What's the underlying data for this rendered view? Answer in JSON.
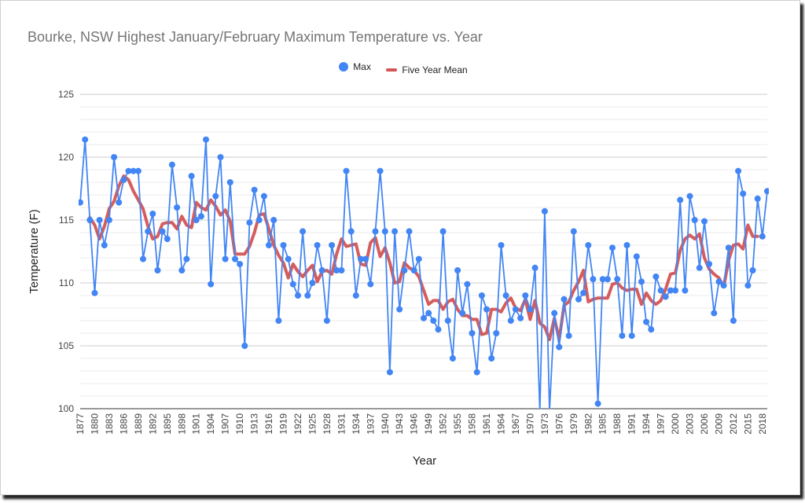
{
  "chart_data": {
    "type": "line",
    "title": "Bourke, NSW Highest January/February Maximum Temperature vs. Year",
    "xlabel": "Year",
    "ylabel": "Temperature (F)",
    "ylim": [
      100,
      125
    ],
    "yticks": [
      100,
      105,
      110,
      115,
      120,
      125
    ],
    "xlim": [
      1877,
      2019
    ],
    "xticks": [
      1877,
      1880,
      1883,
      1886,
      1889,
      1892,
      1895,
      1898,
      1901,
      1904,
      1907,
      1910,
      1913,
      1916,
      1919,
      1922,
      1925,
      1928,
      1931,
      1934,
      1937,
      1940,
      1943,
      1946,
      1949,
      1952,
      1955,
      1958,
      1961,
      1964,
      1967,
      1970,
      1973,
      1976,
      1979,
      1982,
      1985,
      1988,
      1991,
      1994,
      1997,
      2000,
      2003,
      2006,
      2009,
      2012,
      2015,
      2018
    ],
    "grid": true,
    "legend_position": "top",
    "series": [
      {
        "name": "Max",
        "color": "#4285f4",
        "style": "line-with-points",
        "x": [
          1877,
          1878,
          1879,
          1880,
          1881,
          1882,
          1883,
          1884,
          1885,
          1886,
          1887,
          1888,
          1889,
          1890,
          1891,
          1892,
          1893,
          1894,
          1895,
          1896,
          1897,
          1898,
          1899,
          1900,
          1901,
          1902,
          1903,
          1904,
          1905,
          1906,
          1907,
          1908,
          1909,
          1910,
          1911,
          1912,
          1913,
          1914,
          1915,
          1916,
          1917,
          1918,
          1919,
          1920,
          1921,
          1922,
          1923,
          1924,
          1925,
          1926,
          1927,
          1928,
          1929,
          1930,
          1931,
          1932,
          1933,
          1934,
          1935,
          1936,
          1937,
          1938,
          1939,
          1940,
          1941,
          1942,
          1943,
          1944,
          1945,
          1946,
          1947,
          1948,
          1949,
          1950,
          1951,
          1952,
          1953,
          1954,
          1955,
          1956,
          1957,
          1958,
          1959,
          1960,
          1961,
          1962,
          1963,
          1964,
          1965,
          1966,
          1967,
          1968,
          1969,
          1970,
          1971,
          1972,
          1973,
          1974,
          1975,
          1976,
          1977,
          1978,
          1979,
          1980,
          1981,
          1982,
          1983,
          1984,
          1985,
          1986,
          1987,
          1988,
          1989,
          1990,
          1991,
          1992,
          1993,
          1994,
          1995,
          1996,
          1997,
          1998,
          1999,
          2000,
          2001,
          2002,
          2003,
          2004,
          2005,
          2006,
          2007,
          2008,
          2009,
          2010,
          2011,
          2012,
          2013,
          2014,
          2015,
          2016,
          2017,
          2018,
          2019
        ],
        "values": [
          116.4,
          121.4,
          115.0,
          109.2,
          115.0,
          113.0,
          115.0,
          120.0,
          116.4,
          118.2,
          118.9,
          118.9,
          118.9,
          111.9,
          114.1,
          115.5,
          111.0,
          114.1,
          113.5,
          119.4,
          116.0,
          111.0,
          111.9,
          118.5,
          115.0,
          115.3,
          121.4,
          109.9,
          116.9,
          120.0,
          111.9,
          118.0,
          111.9,
          111.5,
          105.0,
          114.8,
          117.4,
          115.0,
          116.9,
          113.0,
          115.0,
          107.0,
          113.0,
          111.9,
          109.9,
          109.0,
          114.1,
          109.0,
          110.0,
          113.0,
          111.0,
          107.0,
          113.0,
          111.0,
          111.0,
          118.9,
          114.1,
          109.0,
          111.9,
          111.9,
          109.9,
          114.1,
          118.9,
          114.1,
          102.9,
          114.1,
          107.9,
          111.0,
          114.1,
          111.0,
          111.9,
          107.2,
          107.6,
          107.0,
          106.3,
          114.1,
          107.0,
          104.0,
          111.0,
          107.6,
          109.9,
          106.0,
          102.9,
          109.0,
          107.9,
          104.0,
          106.0,
          113.0,
          109.0,
          107.0,
          107.9,
          107.2,
          109.0,
          107.9,
          111.2,
          99.8,
          115.7,
          99.8,
          107.6,
          104.9,
          108.7,
          105.8,
          114.1,
          108.7,
          109.2,
          113.0,
          110.3,
          100.4,
          110.3,
          110.3,
          112.8,
          110.3,
          105.8,
          113.0,
          105.8,
          112.1,
          110.1,
          106.9,
          106.3,
          110.5,
          109.4,
          108.9,
          109.4,
          109.4,
          116.6,
          109.4,
          116.9,
          115.0,
          111.2,
          114.9,
          111.5,
          107.6,
          110.1,
          109.8,
          112.8,
          107.0,
          118.9,
          117.1,
          109.8,
          111.0,
          116.7,
          113.7,
          117.3
        ]
      },
      {
        "name": "Five Year Mean",
        "color": "#d35454",
        "style": "line",
        "x": [
          1879,
          1880,
          1881,
          1882,
          1883,
          1884,
          1885,
          1886,
          1887,
          1888,
          1889,
          1890,
          1891,
          1892,
          1893,
          1894,
          1895,
          1896,
          1897,
          1898,
          1899,
          1900,
          1901,
          1902,
          1903,
          1904,
          1905,
          1906,
          1907,
          1908,
          1909,
          1910,
          1911,
          1912,
          1913,
          1914,
          1915,
          1916,
          1917,
          1918,
          1919,
          1920,
          1921,
          1922,
          1923,
          1924,
          1925,
          1926,
          1927,
          1928,
          1929,
          1930,
          1931,
          1932,
          1933,
          1934,
          1935,
          1936,
          1937,
          1938,
          1939,
          1940,
          1941,
          1942,
          1943,
          1944,
          1945,
          1946,
          1947,
          1948,
          1949,
          1950,
          1951,
          1952,
          1953,
          1954,
          1955,
          1956,
          1957,
          1958,
          1959,
          1960,
          1961,
          1962,
          1963,
          1964,
          1965,
          1966,
          1967,
          1968,
          1969,
          1970,
          1971,
          1972,
          1973,
          1974,
          1975,
          1976,
          1977,
          1978,
          1979,
          1980,
          1981,
          1982,
          1983,
          1984,
          1985,
          1986,
          1987,
          1988,
          1989,
          1990,
          1991,
          1992,
          1993,
          1994,
          1995,
          1996,
          1997,
          1998,
          1999,
          2000,
          2001,
          2002,
          2003,
          2004,
          2005,
          2006,
          2007,
          2008,
          2009,
          2010,
          2011,
          2012,
          2013,
          2014,
          2015,
          2016,
          2017
        ],
        "values": [
          115.2,
          114.6,
          113.5,
          114.5,
          115.9,
          116.5,
          117.7,
          118.5,
          118.2,
          117.3,
          116.6,
          115.9,
          114.5,
          113.5,
          113.7,
          114.7,
          114.8,
          114.8,
          114.3,
          115.3,
          114.6,
          114.4,
          116.4,
          116.0,
          115.8,
          116.6,
          116.1,
          115.4,
          115.8,
          114.9,
          112.3,
          112.3,
          112.3,
          112.9,
          114.0,
          115.4,
          115.5,
          114.3,
          113.0,
          112.2,
          111.6,
          110.4,
          111.5,
          110.9,
          110.5,
          111.0,
          111.4,
          110.1,
          110.9,
          111.0,
          110.7,
          112.3,
          113.5,
          112.9,
          113.0,
          113.1,
          111.5,
          111.4,
          113.2,
          113.6,
          112.1,
          112.8,
          111.6,
          110.0,
          110.1,
          111.6,
          111.2,
          111.0,
          110.5,
          109.4,
          108.3,
          108.6,
          108.6,
          107.9,
          108.5,
          108.7,
          107.9,
          107.4,
          107.4,
          107.1,
          107.1,
          105.9,
          106.0,
          107.9,
          107.9,
          107.7,
          108.4,
          108.8,
          108.0,
          107.8,
          108.7,
          107.1,
          108.6,
          106.8,
          106.5,
          105.5,
          107.2,
          105.5,
          108.2,
          108.5,
          109.4,
          110.1,
          111.0,
          108.5,
          108.7,
          108.8,
          108.8,
          108.8,
          109.9,
          110.0,
          109.6,
          109.4,
          109.5,
          109.5,
          108.3,
          109.2,
          108.6,
          108.3,
          108.6,
          109.5,
          110.7,
          110.8,
          112.6,
          113.5,
          113.8,
          113.5,
          113.9,
          112.0,
          111.1,
          110.7,
          110.4,
          109.7,
          111.8,
          113.0,
          113.1,
          112.7,
          114.6,
          113.7,
          113.7
        ]
      }
    ]
  }
}
